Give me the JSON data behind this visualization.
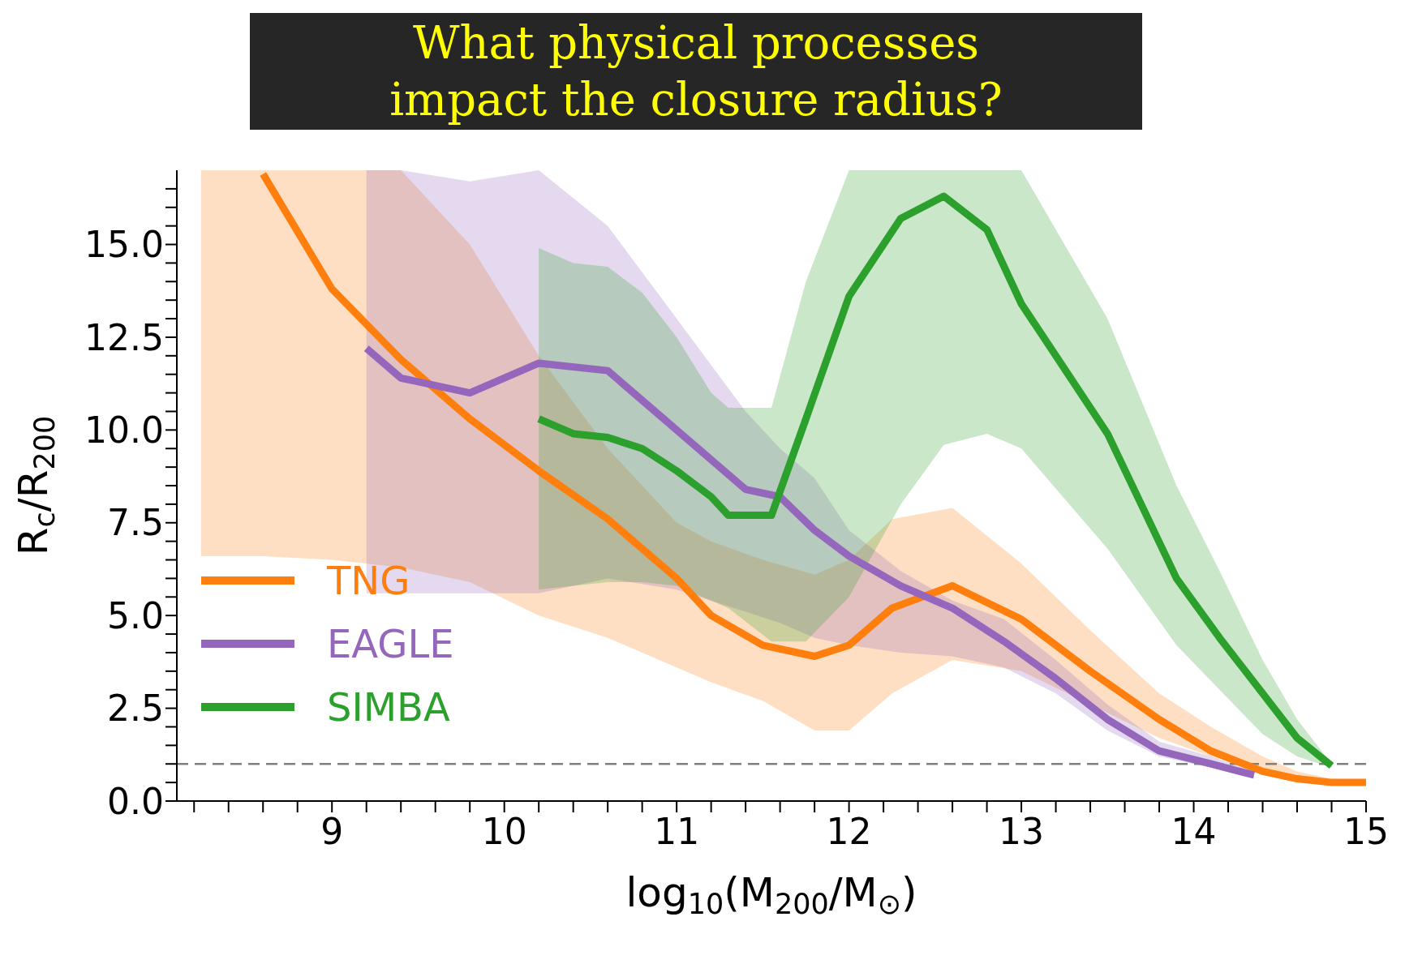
{
  "chart_data": {
    "type": "line",
    "xlabel": "log$_{10}$(M$_{200}$/M$_{⊙}$)",
    "ylabel": "R$_{c}$/R$_{200}$",
    "annotations": [
      "What physical processes",
      "impact the closure radius?"
    ],
    "xlim": [
      8.1,
      15
    ],
    "xticks": [
      {
        "value": 8.2,
        "label": null
      },
      {
        "value": 8.4,
        "label": null
      },
      {
        "value": 8.6,
        "label": null
      },
      {
        "value": 8.8,
        "label": null
      },
      9,
      {
        "value": 9.2,
        "label": null
      },
      {
        "value": 9.4,
        "label": null
      },
      {
        "value": 9.6,
        "label": null
      },
      {
        "value": 9.8,
        "label": null
      },
      10,
      {
        "value": 10.2,
        "label": null
      },
      {
        "value": 10.4,
        "label": null
      },
      {
        "value": 10.6,
        "label": null
      },
      {
        "value": 10.8,
        "label": null
      },
      11,
      {
        "value": 11.2,
        "label": null
      },
      {
        "value": 11.4,
        "label": null
      },
      {
        "value": 11.6,
        "label": null
      },
      {
        "value": 11.8,
        "label": null
      },
      12,
      {
        "value": 12.2,
        "label": null
      },
      {
        "value": 12.4,
        "label": null
      },
      {
        "value": 12.6,
        "label": null
      },
      {
        "value": 12.8,
        "label": null
      },
      13,
      {
        "value": 13.2,
        "label": null
      },
      {
        "value": 13.4,
        "label": null
      },
      {
        "value": 13.6,
        "label": null
      },
      {
        "value": 13.8,
        "label": null
      },
      14,
      {
        "value": 14.2,
        "label": null
      },
      {
        "value": 14.4,
        "label": null
      },
      {
        "value": 14.6,
        "label": null
      },
      {
        "value": 14.8,
        "label": null
      },
      15
    ],
    "ylim": [
      0,
      17
    ],
    "yticks": [
      {
        "value": 0,
        "label": "0.0"
      },
      {
        "value": 0.5,
        "label": null
      },
      {
        "value": 1,
        "label": null
      },
      {
        "value": 1.5,
        "label": null
      },
      {
        "value": 2,
        "label": null
      },
      2.5,
      {
        "value": 3,
        "label": null
      },
      {
        "value": 3.5,
        "label": null
      },
      {
        "value": 4,
        "label": null
      },
      {
        "value": 4.5,
        "label": null
      },
      {
        "value": 5,
        "label": "5.0"
      },
      {
        "value": 5.5,
        "label": null
      },
      {
        "value": 6,
        "label": null
      },
      {
        "value": 6.5,
        "label": null
      },
      {
        "value": 7,
        "label": null
      },
      7.5,
      {
        "value": 8,
        "label": null
      },
      {
        "value": 8.5,
        "label": null
      },
      {
        "value": 9,
        "label": null
      },
      {
        "value": 9.5,
        "label": null
      },
      {
        "value": 10,
        "label": "10.0"
      },
      {
        "value": 10.5,
        "label": null
      },
      {
        "value": 11,
        "label": null
      },
      {
        "value": 11.5,
        "label": null
      },
      {
        "value": 12,
        "label": null
      },
      12.5,
      {
        "value": 13,
        "label": null
      },
      {
        "value": 13.5,
        "label": null
      },
      {
        "value": 14,
        "label": null
      },
      {
        "value": 14.5,
        "label": null
      },
      {
        "value": 15,
        "label": "15.0"
      },
      {
        "value": 15.5,
        "label": null
      },
      {
        "value": 16,
        "label": null
      },
      {
        "value": 16.5,
        "label": null
      }
    ],
    "legend": "bottom left",
    "ref_lines": [
      {
        "axis": "y",
        "value": 1,
        "color": "#808080",
        "line_style": "dashed"
      }
    ],
    "series": [
      {
        "name": "TNG",
        "color": "#ff7f0e",
        "x": [
          8.24,
          8.6,
          9.0,
          9.4,
          9.8,
          10.2,
          10.6,
          11.0,
          11.2,
          11.5,
          11.8,
          12.0,
          12.25,
          12.6,
          13.0,
          13.4,
          13.8,
          14.1,
          14.4,
          14.6,
          14.8,
          15.0
        ],
        "values": [
          null,
          16.9,
          13.8,
          11.9,
          10.3,
          8.9,
          7.6,
          6.0,
          5.0,
          4.2,
          3.9,
          4.2,
          5.2,
          5.8,
          4.9,
          3.5,
          2.2,
          1.35,
          0.8,
          0.6,
          0.5,
          0.5
        ],
        "lower": [
          6.6,
          6.6,
          6.5,
          6.3,
          5.9,
          5.0,
          4.4,
          3.6,
          3.2,
          2.7,
          1.9,
          1.9,
          2.9,
          3.8,
          3.5,
          2.6,
          1.7,
          1.2,
          0.8,
          0.6,
          0.5,
          0.5
        ],
        "upper": [
          17,
          17,
          17,
          17,
          15,
          12,
          9.5,
          7.5,
          7.0,
          6.5,
          6.1,
          6.5,
          7.6,
          7.9,
          6.4,
          4.6,
          2.9,
          2.0,
          1.2,
          0.8,
          0.6,
          0.55
        ]
      },
      {
        "name": "EAGLE",
        "color": "#9467bd",
        "x": [
          9.2,
          9.4,
          9.8,
          10.2,
          10.6,
          11.0,
          11.4,
          11.6,
          11.8,
          12.0,
          12.3,
          12.6,
          12.9,
          13.2,
          13.5,
          13.8,
          14.1,
          14.35
        ],
        "values": [
          12.2,
          11.4,
          11.0,
          11.8,
          11.6,
          10.0,
          8.4,
          8.2,
          7.3,
          6.6,
          5.8,
          5.2,
          4.3,
          3.3,
          2.2,
          1.35,
          1.0,
          0.7
        ],
        "lower": [
          5.6,
          5.6,
          5.6,
          5.6,
          6.0,
          5.7,
          5.1,
          4.8,
          4.4,
          4.2,
          4.0,
          3.9,
          3.6,
          2.9,
          1.9,
          1.2,
          0.9,
          0.6
        ],
        "upper": [
          17,
          17,
          16.7,
          17,
          15.5,
          13,
          10.5,
          9.5,
          8.7,
          7.3,
          6.2,
          5.4,
          4.9,
          3.8,
          2.6,
          1.6,
          1.2,
          0.8
        ]
      },
      {
        "name": "SIMBA",
        "color": "#2ca02c",
        "x": [
          10.2,
          10.4,
          10.6,
          10.8,
          11.0,
          11.2,
          11.3,
          11.55,
          11.75,
          12.0,
          12.3,
          12.55,
          12.8,
          13.0,
          13.5,
          13.9,
          14.15,
          14.4,
          14.6,
          14.8
        ],
        "values": [
          10.3,
          9.9,
          9.8,
          9.5,
          8.9,
          8.2,
          7.7,
          7.7,
          10.3,
          13.6,
          15.7,
          16.3,
          15.4,
          13.4,
          9.9,
          6.0,
          4.4,
          2.9,
          1.7,
          0.95
        ],
        "lower": [
          5.7,
          5.8,
          5.9,
          5.9,
          5.8,
          5.4,
          5.2,
          4.3,
          4.3,
          5.5,
          8.0,
          9.6,
          9.9,
          9.5,
          6.8,
          4.2,
          3.0,
          1.8,
          1.2,
          0.9
        ],
        "upper": [
          14.9,
          14.5,
          14.4,
          13.7,
          12.5,
          11.0,
          10.6,
          10.6,
          14.0,
          17,
          17,
          17,
          17,
          17,
          13.0,
          8.5,
          6.2,
          3.8,
          2.2,
          1.0
        ]
      }
    ]
  }
}
